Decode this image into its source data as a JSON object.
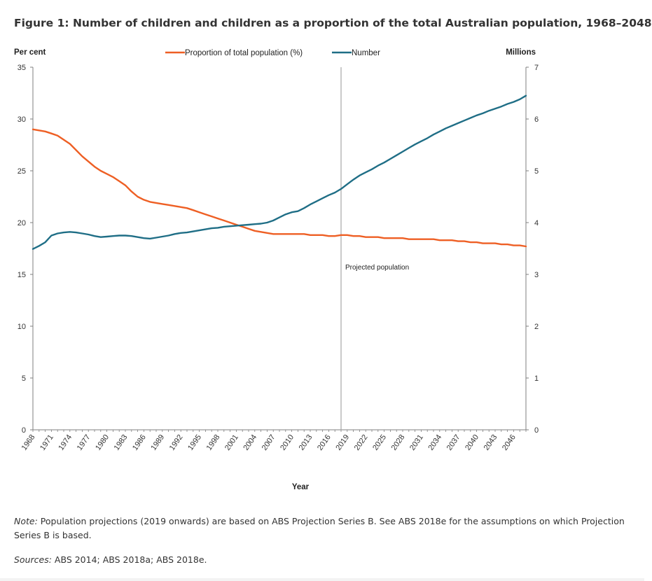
{
  "figure": {
    "title": "Figure 1: Number of children and children as a proportion of the total Australian population, 1968–2048",
    "note_label": "Note:",
    "note_text": " Population projections (2019 onwards) are based on ABS Projection Series B. See ABS 2018e for the assumptions on which Projection Series B is based.",
    "sources_label": "Sources:",
    "sources_text": " ABS 2014; ABS 2018a; ABS 2018e."
  },
  "colors": {
    "proportion": "#ee5f24",
    "number": "#1f6e86",
    "axis": "#7f7f7f",
    "divider": "#a6a6a6"
  },
  "chart_data": {
    "type": "line",
    "title": "Figure 1: Number of children and children as a proportion of the total Australian population, 1968–2048",
    "xlabel": "Year",
    "ylabel_left": "Per cent",
    "ylabel_right": "Millions",
    "ylim_left": [
      0,
      35
    ],
    "ylim_right": [
      0,
      7
    ],
    "yticks_left": [
      "0",
      "5",
      "10",
      "15",
      "20",
      "25",
      "30",
      "35"
    ],
    "yticks_right": [
      "0",
      "1",
      "2",
      "3",
      "4",
      "5",
      "6",
      "7"
    ],
    "xlim": [
      1968,
      2048
    ],
    "xticks": [
      "1968",
      "1971",
      "1974",
      "1977",
      "1980",
      "1983",
      "1986",
      "1989",
      "1992",
      "1995",
      "1998",
      "2001",
      "2004",
      "2007",
      "2010",
      "2013",
      "2016",
      "2019",
      "2022",
      "2025",
      "2028",
      "2031",
      "2034",
      "2037",
      "2040",
      "2043",
      "2046"
    ],
    "grid": false,
    "legend_position": "top-center",
    "annotation": {
      "x": 2018,
      "label": "Projected population"
    },
    "x": [
      1968,
      1969,
      1970,
      1971,
      1972,
      1973,
      1974,
      1975,
      1976,
      1977,
      1978,
      1979,
      1980,
      1981,
      1982,
      1983,
      1984,
      1985,
      1986,
      1987,
      1988,
      1989,
      1990,
      1991,
      1992,
      1993,
      1994,
      1995,
      1996,
      1997,
      1998,
      1999,
      2000,
      2001,
      2002,
      2003,
      2004,
      2005,
      2006,
      2007,
      2008,
      2009,
      2010,
      2011,
      2012,
      2013,
      2014,
      2015,
      2016,
      2017,
      2018,
      2019,
      2020,
      2021,
      2022,
      2023,
      2024,
      2025,
      2026,
      2027,
      2028,
      2029,
      2030,
      2031,
      2032,
      2033,
      2034,
      2035,
      2036,
      2037,
      2038,
      2039,
      2040,
      2041,
      2042,
      2043,
      2044,
      2045,
      2046,
      2047,
      2048
    ],
    "series": [
      {
        "name": "Proportion of total population (%)",
        "axis": "left",
        "values": [
          29.0,
          28.9,
          28.8,
          28.6,
          28.4,
          28.0,
          27.6,
          27.0,
          26.4,
          25.9,
          25.4,
          25.0,
          24.7,
          24.4,
          24.0,
          23.6,
          23.0,
          22.5,
          22.2,
          22.0,
          21.9,
          21.8,
          21.7,
          21.6,
          21.5,
          21.4,
          21.2,
          21.0,
          20.8,
          20.6,
          20.4,
          20.2,
          20.0,
          19.8,
          19.6,
          19.4,
          19.2,
          19.1,
          19.0,
          18.9,
          18.9,
          18.9,
          18.9,
          18.9,
          18.9,
          18.8,
          18.8,
          18.8,
          18.7,
          18.7,
          18.8,
          18.8,
          18.7,
          18.7,
          18.6,
          18.6,
          18.6,
          18.5,
          18.5,
          18.5,
          18.5,
          18.4,
          18.4,
          18.4,
          18.4,
          18.4,
          18.3,
          18.3,
          18.3,
          18.2,
          18.2,
          18.1,
          18.1,
          18.0,
          18.0,
          18.0,
          17.9,
          17.9,
          17.8,
          17.8,
          17.7
        ]
      },
      {
        "name": "Number",
        "axis": "right",
        "values": [
          3.49,
          3.55,
          3.62,
          3.75,
          3.79,
          3.81,
          3.82,
          3.81,
          3.79,
          3.77,
          3.74,
          3.72,
          3.73,
          3.74,
          3.75,
          3.75,
          3.74,
          3.72,
          3.7,
          3.69,
          3.71,
          3.73,
          3.75,
          3.78,
          3.8,
          3.81,
          3.83,
          3.85,
          3.87,
          3.89,
          3.9,
          3.92,
          3.93,
          3.94,
          3.95,
          3.96,
          3.97,
          3.98,
          4.0,
          4.04,
          4.1,
          4.16,
          4.2,
          4.22,
          4.28,
          4.35,
          4.41,
          4.47,
          4.53,
          4.58,
          4.65,
          4.74,
          4.83,
          4.91,
          4.97,
          5.03,
          5.1,
          5.16,
          5.23,
          5.3,
          5.37,
          5.44,
          5.51,
          5.57,
          5.63,
          5.7,
          5.76,
          5.82,
          5.87,
          5.92,
          5.97,
          6.02,
          6.07,
          6.11,
          6.16,
          6.2,
          6.24,
          6.29,
          6.33,
          6.38,
          6.45
        ]
      }
    ]
  }
}
